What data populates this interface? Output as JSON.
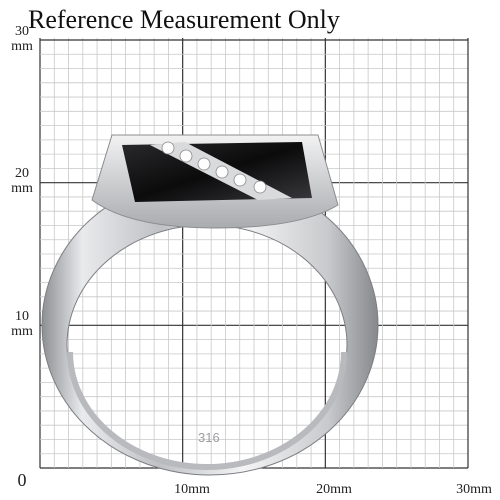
{
  "title": "Reference Measurement Only",
  "y_labels": [
    {
      "number": "30",
      "unit": "mm"
    },
    {
      "number": "20",
      "unit": "mm"
    },
    {
      "number": "10",
      "unit": "mm"
    },
    {
      "number": "0"
    }
  ],
  "x_labels": [
    "10mm",
    "20mm",
    "30mm"
  ],
  "ring": {
    "stamp": "316"
  }
}
